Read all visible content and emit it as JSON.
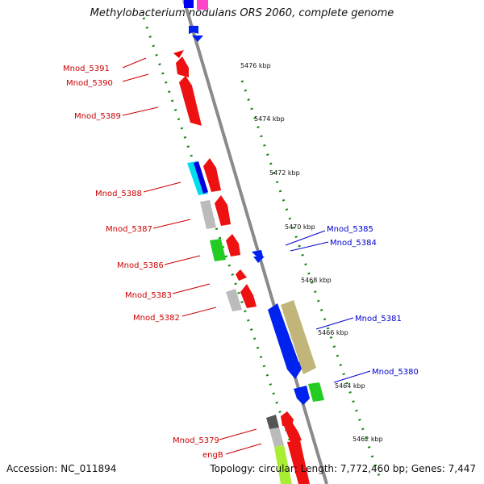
{
  "title": "Methylobacterium nodulans ORS 2060, complete genome",
  "footer": {
    "accession": "Accession: NC_011894",
    "summary": "Topology: circular; Length: 7,772,460 bp; Genes: 7,447"
  },
  "scale_labels": [
    "5476 kbp",
    "5474 kbp",
    "5472 kbp",
    "5470 kbp",
    "5468 kbp",
    "5466 kbp",
    "5464 kbp",
    "5462 kbp"
  ],
  "forward_genes": [
    "Mnod_5391",
    "Mnod_5390",
    "Mnod_5389",
    "Mnod_5388",
    "Mnod_5387",
    "Mnod_5386",
    "Mnod_5383",
    "Mnod_5382",
    "Mnod_5379",
    "engB"
  ],
  "reverse_genes": [
    "Mnod_5385",
    "Mnod_5384",
    "Mnod_5381",
    "Mnod_5380"
  ],
  "colors": {
    "forward_label": "#cc0000",
    "reverse_label": "#0000cc",
    "backbone": "#888888",
    "scale_dots": "#118811"
  }
}
